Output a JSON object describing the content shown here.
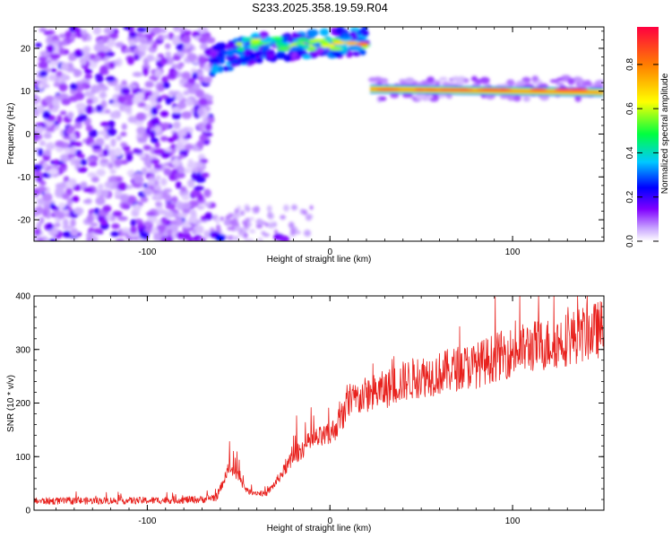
{
  "title": "S233.2025.358.19.59.R04",
  "chart_data": [
    {
      "type": "heatmap",
      "xlabel": "Height of straight line (km)",
      "ylabel": "Frequency (Hz)",
      "xlim": [
        -162,
        150
      ],
      "ylim": [
        -25,
        25
      ],
      "xticks": [
        -100,
        0,
        100
      ],
      "yticks": [
        -20,
        -10,
        0,
        10,
        20
      ],
      "colorbar": {
        "label": "Normalized spectral amplitude",
        "range": [
          0,
          0.97
        ],
        "ticks": [
          0.0,
          0.2,
          0.4,
          0.6,
          0.8
        ],
        "colors": [
          "#ffffff",
          "#c9a6ff",
          "#8000ff",
          "#0000ff",
          "#00c8ff",
          "#00ff40",
          "#ffff00",
          "#ff8000",
          "#ff0040"
        ]
      },
      "features": [
        {
          "x_range": [
            -162,
            -65
          ],
          "freq_range": [
            -25,
            25
          ],
          "amplitude": 0.15
        },
        {
          "x_range": [
            -65,
            20
          ],
          "freq_center": 21,
          "amplitude": 0.45
        },
        {
          "x_range": [
            22,
            148
          ],
          "freq_center": 10.5,
          "amplitude": 0.9
        }
      ]
    },
    {
      "type": "line",
      "xlabel": "Height of straight line (km)",
      "ylabel": "SNR (10 * v/v)",
      "xlim": [
        -162,
        150
      ],
      "ylim": [
        0,
        400
      ],
      "xticks": [
        -100,
        0,
        100
      ],
      "yticks": [
        0,
        100,
        200,
        300,
        400
      ],
      "series": [
        {
          "color": "#e8201c",
          "trend": [
            [
              -162,
              17
            ],
            [
              -100,
              18
            ],
            [
              -70,
              20
            ],
            [
              -62,
              25
            ],
            [
              -55,
              80
            ],
            [
              -50,
              60
            ],
            [
              -45,
              35
            ],
            [
              -35,
              30
            ],
            [
              -30,
              50
            ],
            [
              -20,
              100
            ],
            [
              -10,
              130
            ],
            [
              0,
              140
            ],
            [
              5,
              165
            ],
            [
              10,
              200
            ],
            [
              20,
              215
            ],
            [
              30,
              225
            ],
            [
              40,
              240
            ],
            [
              50,
              250
            ],
            [
              60,
              255
            ],
            [
              70,
              265
            ],
            [
              80,
              270
            ],
            [
              90,
              285
            ],
            [
              100,
              295
            ],
            [
              110,
              305
            ],
            [
              120,
              310
            ],
            [
              130,
              320
            ],
            [
              140,
              330
            ],
            [
              150,
              340
            ]
          ]
        }
      ]
    }
  ]
}
